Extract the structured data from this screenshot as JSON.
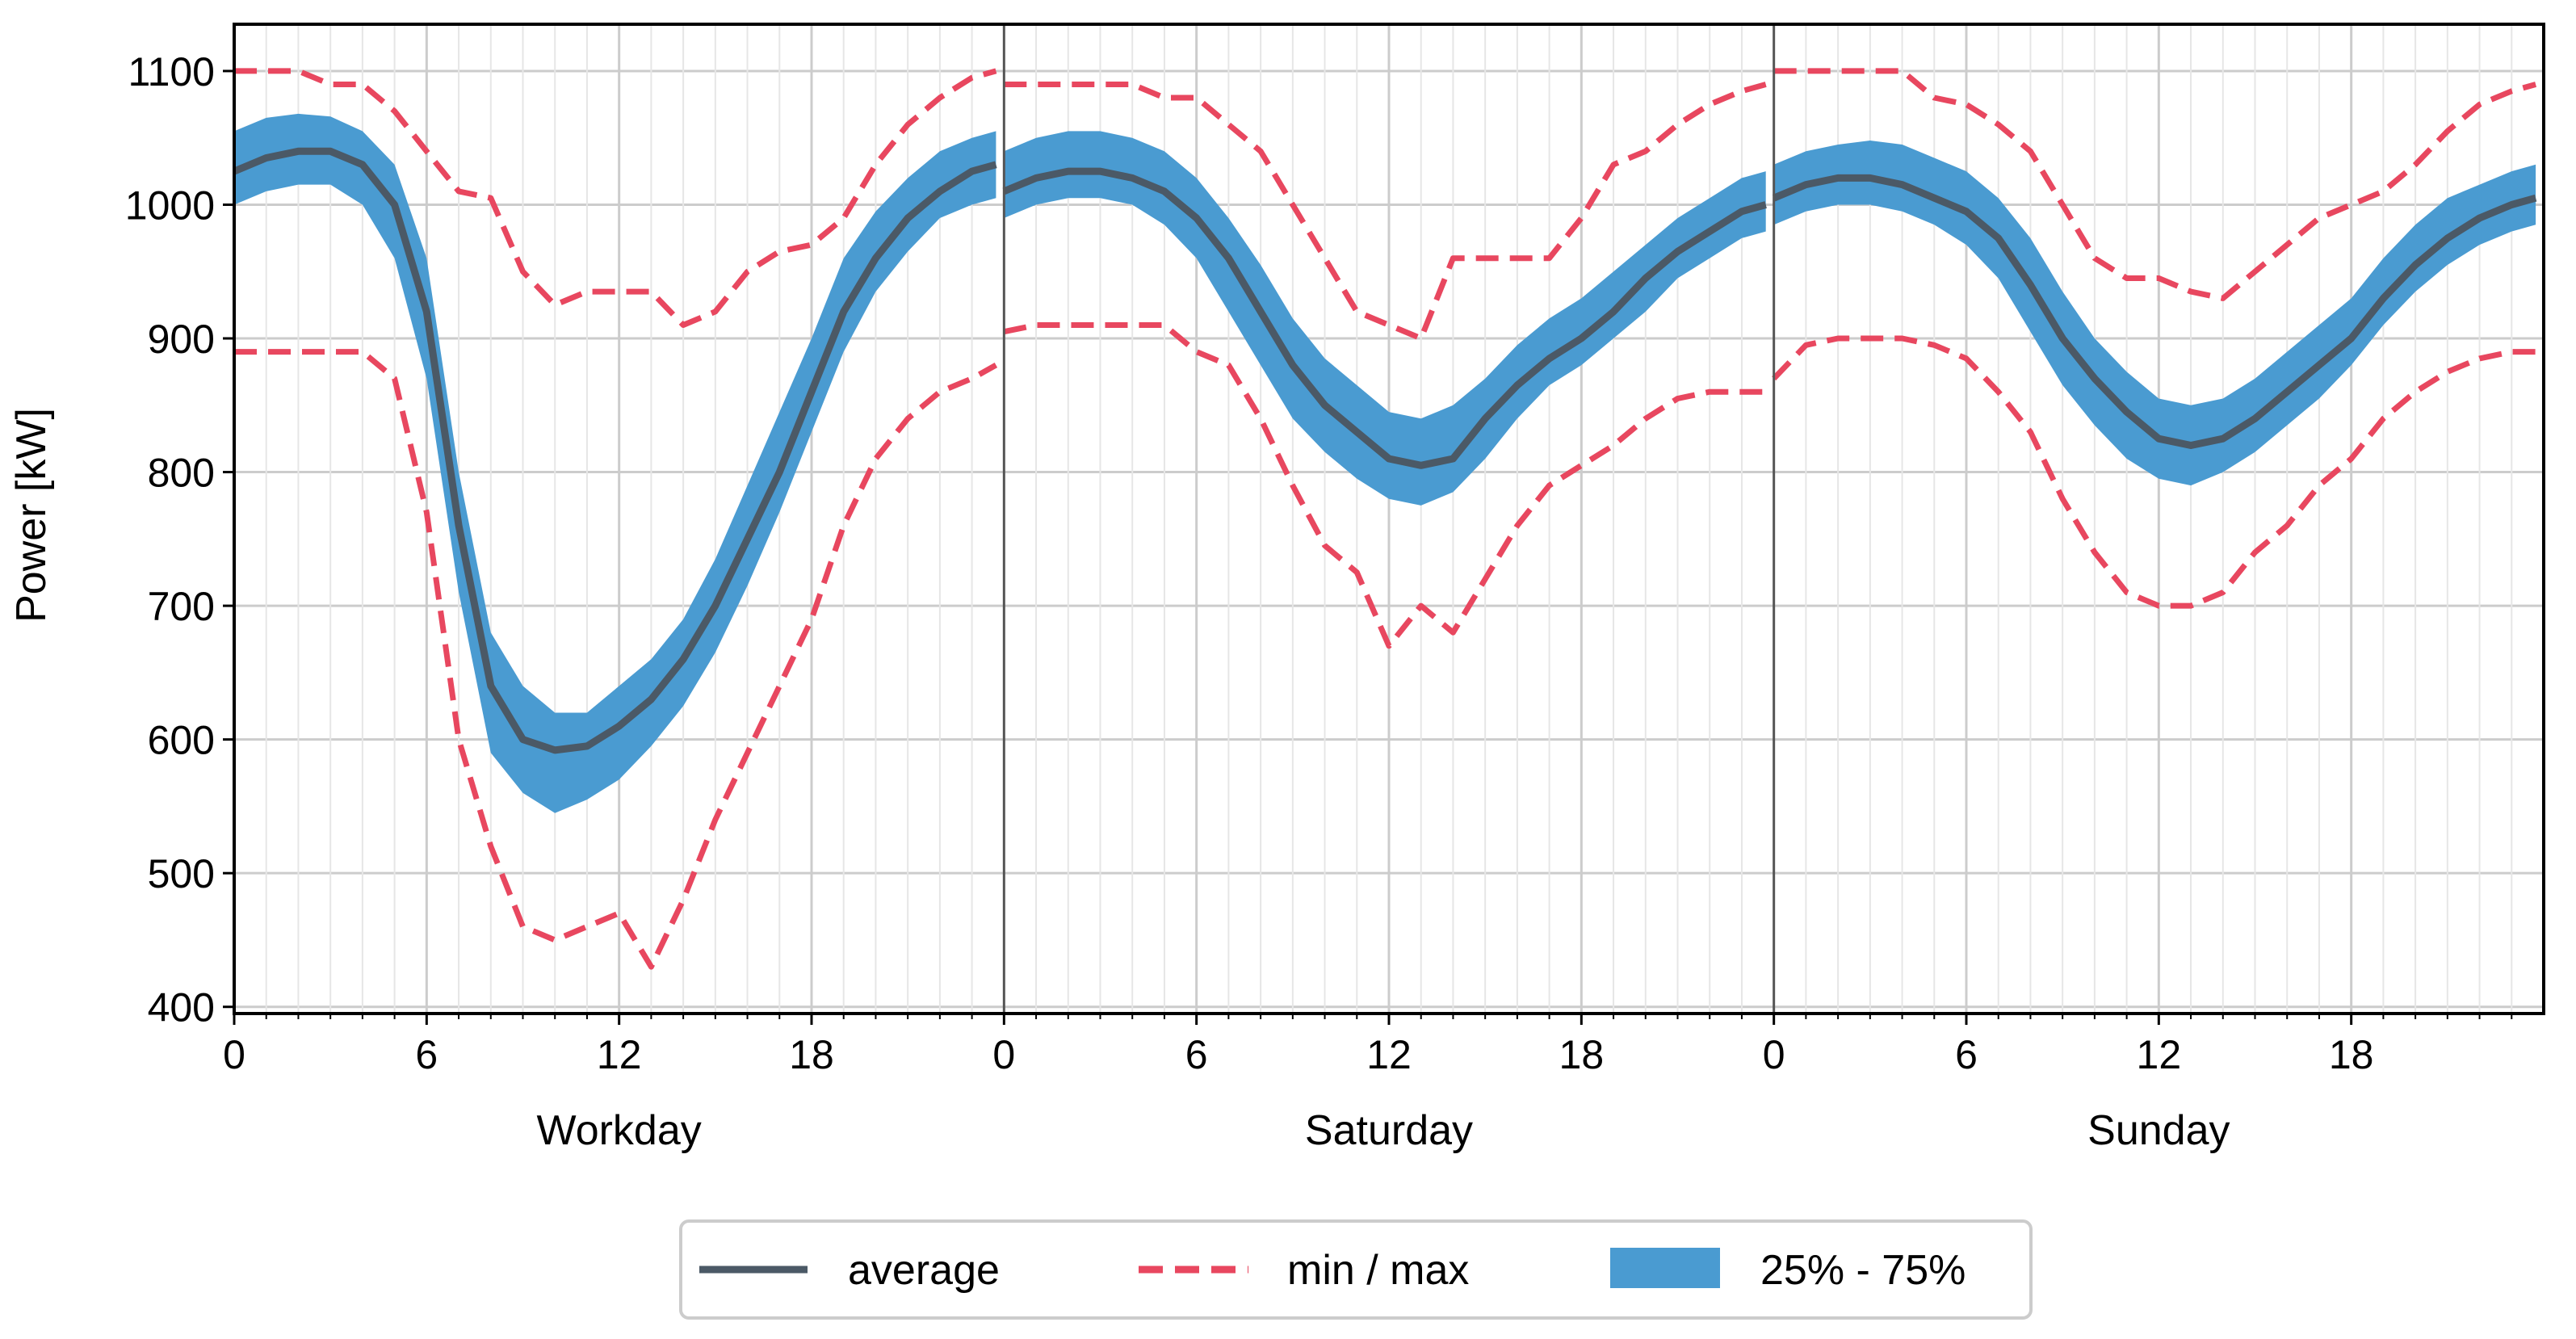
{
  "chart_data": {
    "type": "line",
    "ylabel": "Power [kW]",
    "ylim": [
      395,
      1135
    ],
    "xlim": [
      0,
      24
    ],
    "y_ticks": [
      "400",
      "500",
      "600",
      "700",
      "800",
      "900",
      "1000",
      "1100"
    ],
    "x_ticks": [
      {
        "value": 0,
        "label": "0"
      },
      {
        "value": 6,
        "label": "6"
      },
      {
        "value": 12,
        "label": "12"
      },
      {
        "value": 18,
        "label": "18"
      }
    ],
    "grid": true,
    "legend_position": "bottom-center",
    "colors": {
      "average": "#4b5966",
      "minmax": "#e8475f",
      "band": "#4a9bd1",
      "grid": "#cccccc",
      "axis": "#000000"
    },
    "legend": {
      "average": "average",
      "minmax": "min / max",
      "band": "25% - 75%"
    },
    "panels": [
      {
        "name": "Workday",
        "hours": [
          0,
          1,
          2,
          3,
          4,
          5,
          6,
          7,
          8,
          9,
          10,
          11,
          12,
          13,
          14,
          15,
          16,
          17,
          18,
          19,
          20,
          21,
          22,
          23,
          23.75
        ],
        "average": [
          1025,
          1035,
          1040,
          1040,
          1030,
          1000,
          920,
          760,
          640,
          600,
          592,
          595,
          610,
          630,
          660,
          700,
          750,
          800,
          860,
          920,
          960,
          990,
          1010,
          1025,
          1030
        ],
        "p25": [
          1000,
          1010,
          1015,
          1015,
          1000,
          960,
          870,
          710,
          590,
          560,
          545,
          555,
          570,
          595,
          625,
          665,
          715,
          770,
          830,
          890,
          935,
          965,
          990,
          1000,
          1005
        ],
        "p75": [
          1055,
          1065,
          1068,
          1066,
          1055,
          1030,
          960,
          800,
          680,
          640,
          620,
          620,
          640,
          660,
          690,
          735,
          790,
          845,
          900,
          960,
          995,
          1020,
          1040,
          1050,
          1055
        ],
        "min": [
          890,
          890,
          890,
          890,
          890,
          870,
          770,
          600,
          520,
          460,
          450,
          460,
          470,
          430,
          480,
          540,
          590,
          640,
          690,
          760,
          810,
          840,
          860,
          870,
          880
        ],
        "max": [
          1100,
          1100,
          1100,
          1090,
          1090,
          1070,
          1040,
          1010,
          1005,
          950,
          925,
          935,
          935,
          935,
          910,
          920,
          950,
          965,
          970,
          990,
          1030,
          1060,
          1080,
          1095,
          1100
        ]
      },
      {
        "name": "Saturday",
        "hours": [
          0,
          1,
          2,
          3,
          4,
          5,
          6,
          7,
          8,
          9,
          10,
          11,
          12,
          13,
          14,
          15,
          16,
          17,
          18,
          19,
          20,
          21,
          22,
          23,
          23.75
        ],
        "average": [
          1010,
          1020,
          1025,
          1025,
          1020,
          1010,
          990,
          960,
          920,
          880,
          850,
          830,
          810,
          805,
          810,
          840,
          865,
          885,
          900,
          920,
          945,
          965,
          980,
          995,
          1000
        ],
        "p25": [
          990,
          1000,
          1005,
          1005,
          1000,
          985,
          960,
          920,
          880,
          840,
          815,
          795,
          780,
          775,
          785,
          810,
          840,
          865,
          880,
          900,
          920,
          945,
          960,
          975,
          980
        ],
        "p75": [
          1040,
          1050,
          1055,
          1055,
          1050,
          1040,
          1020,
          990,
          955,
          915,
          885,
          865,
          845,
          840,
          850,
          870,
          895,
          915,
          930,
          950,
          970,
          990,
          1005,
          1020,
          1025
        ],
        "min": [
          905,
          910,
          910,
          910,
          910,
          910,
          890,
          880,
          840,
          790,
          745,
          725,
          670,
          700,
          680,
          720,
          760,
          790,
          805,
          820,
          840,
          855,
          860,
          860,
          860
        ],
        "max": [
          1090,
          1090,
          1090,
          1090,
          1090,
          1080,
          1080,
          1060,
          1040,
          1000,
          960,
          920,
          910,
          900,
          960,
          960,
          960,
          960,
          990,
          1030,
          1040,
          1060,
          1075,
          1085,
          1090
        ]
      },
      {
        "name": "Sunday",
        "hours": [
          0,
          1,
          2,
          3,
          4,
          5,
          6,
          7,
          8,
          9,
          10,
          11,
          12,
          13,
          14,
          15,
          16,
          17,
          18,
          19,
          20,
          21,
          22,
          23,
          23.75
        ],
        "average": [
          1005,
          1015,
          1020,
          1020,
          1015,
          1005,
          995,
          975,
          940,
          900,
          870,
          845,
          825,
          820,
          825,
          840,
          860,
          880,
          900,
          930,
          955,
          975,
          990,
          1000,
          1005
        ],
        "p25": [
          985,
          995,
          1000,
          1000,
          995,
          985,
          970,
          945,
          905,
          865,
          835,
          810,
          795,
          790,
          800,
          815,
          835,
          855,
          880,
          910,
          935,
          955,
          970,
          980,
          985
        ],
        "p75": [
          1030,
          1040,
          1045,
          1048,
          1045,
          1035,
          1025,
          1005,
          975,
          935,
          900,
          875,
          855,
          850,
          855,
          870,
          890,
          910,
          930,
          960,
          985,
          1005,
          1015,
          1025,
          1030
        ],
        "min": [
          870,
          895,
          900,
          900,
          900,
          895,
          885,
          860,
          830,
          780,
          740,
          710,
          700,
          700,
          710,
          740,
          760,
          790,
          810,
          840,
          860,
          875,
          885,
          890,
          890
        ],
        "max": [
          1100,
          1100,
          1100,
          1100,
          1100,
          1080,
          1075,
          1060,
          1040,
          1000,
          960,
          945,
          945,
          935,
          930,
          950,
          970,
          990,
          1000,
          1010,
          1030,
          1055,
          1075,
          1085,
          1090
        ]
      }
    ]
  }
}
